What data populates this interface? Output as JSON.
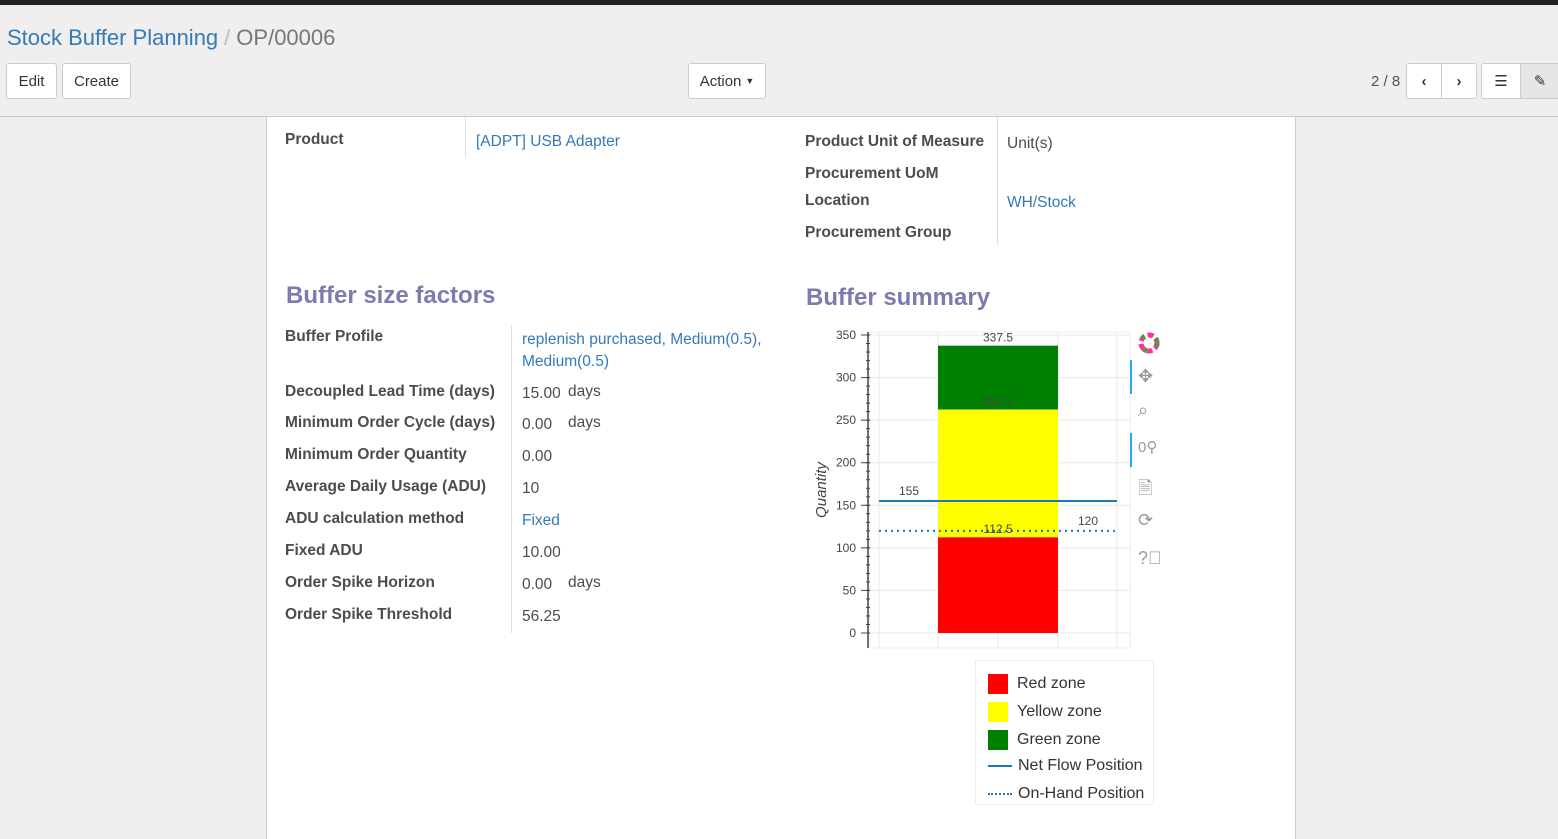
{
  "breadcrumb": {
    "parent": "Stock Buffer Planning",
    "current": "OP/00006"
  },
  "toolbar": {
    "edit": "Edit",
    "create": "Create",
    "action": "Action",
    "pager": "2 / 8"
  },
  "top_fields": {
    "product_label": "Product",
    "product_value": "[ADPT] USB Adapter",
    "uom_label": "Product Unit of Measure",
    "uom_value": "Unit(s)",
    "proc_uom_label": "Procurement UoM",
    "location_label": "Location",
    "location_value": "WH/Stock",
    "group_label": "Procurement Group"
  },
  "factors": {
    "title": "Buffer size factors",
    "rows": [
      {
        "label": "Buffer Profile",
        "value": "replenish purchased, Medium(0.5),",
        "value2": "Medium(0.5)"
      },
      {
        "label": "Decoupled Lead Time (days)",
        "value": "15.00",
        "unit": "days"
      },
      {
        "label": "Minimum Order Cycle (days)",
        "value": "0.00",
        "unit": "days"
      },
      {
        "label": "Minimum Order Quantity",
        "value": "0.00"
      },
      {
        "label": "Average Daily Usage (ADU)",
        "value": "10"
      },
      {
        "label": "ADU calculation method",
        "value": "Fixed"
      },
      {
        "label": "Fixed ADU",
        "value": "10.00"
      },
      {
        "label": "Order Spike Horizon",
        "value": "0.00",
        "unit": "days"
      },
      {
        "label": "Order Spike Threshold",
        "value": "56.25"
      }
    ]
  },
  "summary": {
    "title": "Buffer summary"
  },
  "chart_data": {
    "type": "bar",
    "stacked": true,
    "ylabel": "Quantity",
    "ylim": [
      0,
      350
    ],
    "yticks": [
      "0",
      "50",
      "100",
      "150",
      "200",
      "250",
      "300",
      "350"
    ],
    "grid": true,
    "zones": [
      {
        "name": "Red zone",
        "from": 0,
        "to": 112.5,
        "color": "#ff0000",
        "label": "112.5"
      },
      {
        "name": "Yellow zone",
        "from": 112.5,
        "to": 262.5,
        "color": "#ffff00",
        "label": "262.5"
      },
      {
        "name": "Green zone",
        "from": 262.5,
        "to": 337.5,
        "color": "#008000",
        "label": "337.5"
      }
    ],
    "lines": [
      {
        "name": "Net Flow Position",
        "value": 155,
        "label": "155",
        "style": "solid",
        "color": "#1f77b4"
      },
      {
        "name": "On-Hand Position",
        "value": 120,
        "label": "120",
        "style": "dotted",
        "color": "#1f77b4"
      }
    ],
    "legend_position": "bottom-right"
  }
}
